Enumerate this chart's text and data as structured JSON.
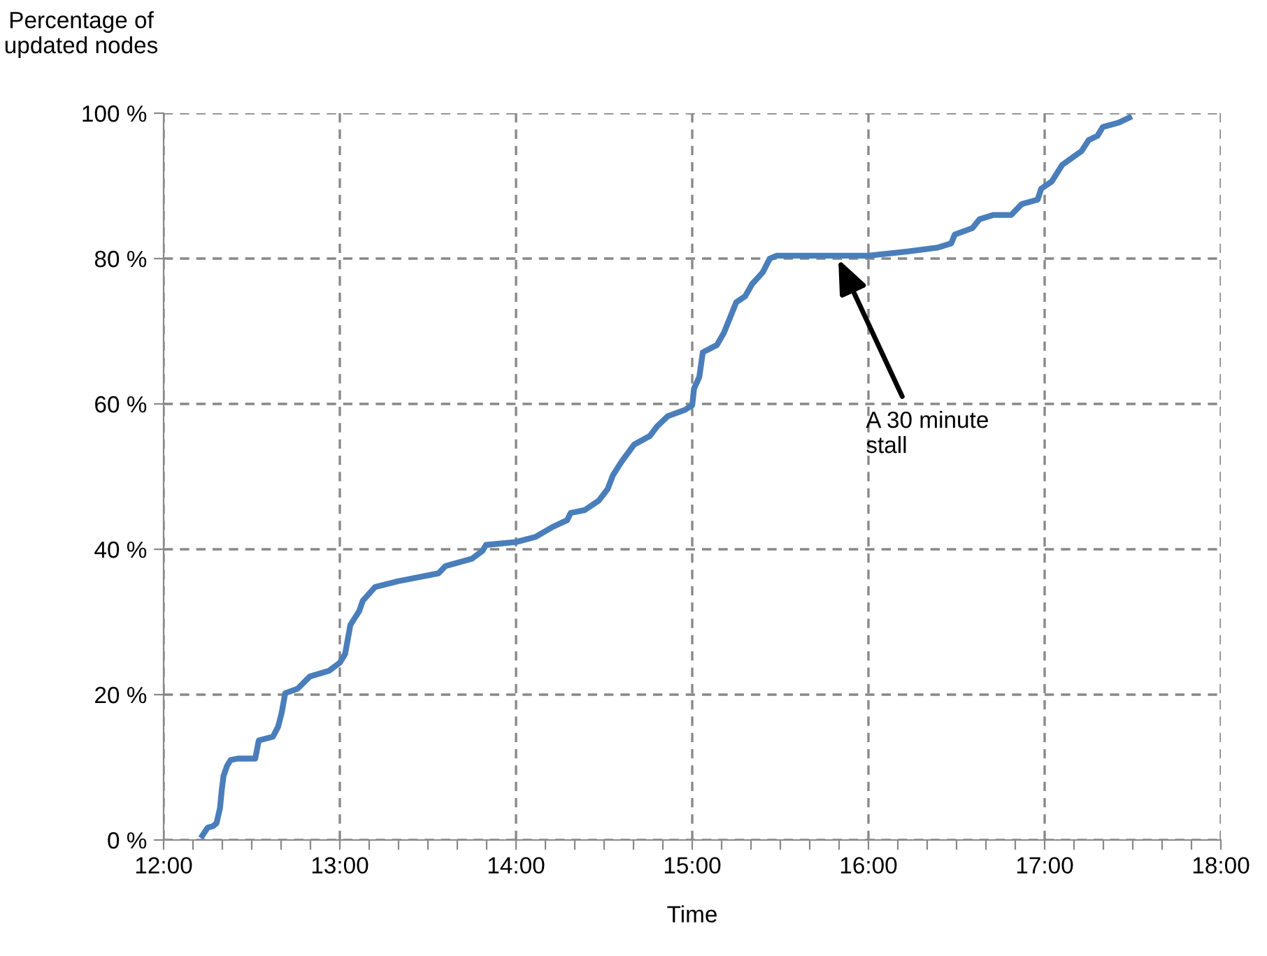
{
  "chart_data": {
    "type": "line",
    "xlabel": "Time",
    "ylabel": "Percentage of\nupdated nodes",
    "x": [
      12.22,
      12.25,
      12.28,
      12.3,
      12.32,
      12.33,
      12.34,
      12.36,
      12.38,
      12.42,
      12.52,
      12.54,
      12.62,
      12.65,
      12.67,
      12.69,
      12.76,
      12.83,
      12.94,
      13.0,
      13.03,
      13.06,
      13.11,
      13.13,
      13.2,
      13.33,
      13.56,
      13.6,
      13.75,
      13.81,
      13.83,
      14.0,
      14.11,
      14.21,
      14.29,
      14.31,
      14.39,
      14.47,
      14.52,
      14.55,
      14.6,
      14.67,
      14.76,
      14.8,
      14.86,
      14.96,
      15.0,
      15.01,
      15.04,
      15.06,
      15.14,
      15.18,
      15.25,
      15.3,
      15.34,
      15.4,
      15.44,
      15.48,
      15.83,
      16.0,
      16.23,
      16.39,
      16.47,
      16.49,
      16.59,
      16.63,
      16.71,
      16.81,
      16.87,
      16.96,
      16.98,
      17.04,
      17.1,
      17.21,
      17.25,
      17.3,
      17.33,
      17.42,
      17.48
    ],
    "series": [
      {
        "color": "#4a7ebb",
        "values": [
          0.6,
          1.7,
          1.9,
          2.3,
          4.4,
          6.9,
          8.8,
          10.2,
          11,
          11.2,
          11.2,
          13.7,
          14.2,
          15.6,
          17.5,
          20.2,
          20.8,
          22.5,
          23.3,
          24.4,
          25.6,
          29.6,
          31.5,
          32.9,
          34.8,
          35.6,
          36.7,
          37.7,
          38.7,
          39.8,
          40.6,
          41.0,
          41.7,
          43.1,
          44.0,
          45.0,
          45.4,
          46.7,
          48.3,
          50.2,
          52.1,
          54.4,
          55.6,
          56.9,
          58.3,
          59.2,
          59.8,
          62.1,
          63.7,
          67.1,
          68.1,
          69.8,
          74.0,
          74.8,
          76.5,
          78.1,
          80.0,
          80.4,
          80.4,
          80.4,
          81.0,
          81.5,
          82.1,
          83.3,
          84.2,
          85.4,
          86.0,
          86.0,
          87.5,
          88.1,
          89.6,
          90.6,
          92.9,
          94.8,
          96.3,
          96.9,
          98.1,
          98.7,
          99.4
        ]
      }
    ],
    "xlim": [
      12,
      18
    ],
    "xticks": [
      {
        "value": 12,
        "label": "12:00"
      },
      {
        "value": 12.1667,
        "label": null
      },
      {
        "value": 12.3333,
        "label": null
      },
      {
        "value": 12.5,
        "label": null
      },
      {
        "value": 12.6667,
        "label": null
      },
      {
        "value": 12.8333,
        "label": null
      },
      {
        "value": 13,
        "label": "13:00"
      },
      {
        "value": 13.1667,
        "label": null
      },
      {
        "value": 13.3333,
        "label": null
      },
      {
        "value": 13.5,
        "label": null
      },
      {
        "value": 13.6667,
        "label": null
      },
      {
        "value": 13.8333,
        "label": null
      },
      {
        "value": 14,
        "label": "14:00"
      },
      {
        "value": 14.1667,
        "label": null
      },
      {
        "value": 14.3333,
        "label": null
      },
      {
        "value": 14.5,
        "label": null
      },
      {
        "value": 14.6667,
        "label": null
      },
      {
        "value": 14.8333,
        "label": null
      },
      {
        "value": 15,
        "label": "15:00"
      },
      {
        "value": 15.1667,
        "label": null
      },
      {
        "value": 15.3333,
        "label": null
      },
      {
        "value": 15.5,
        "label": null
      },
      {
        "value": 15.6667,
        "label": null
      },
      {
        "value": 15.8333,
        "label": null
      },
      {
        "value": 16,
        "label": "16:00"
      },
      {
        "value": 16.1667,
        "label": null
      },
      {
        "value": 16.3333,
        "label": null
      },
      {
        "value": 16.5,
        "label": null
      },
      {
        "value": 16.6667,
        "label": null
      },
      {
        "value": 16.8333,
        "label": null
      },
      {
        "value": 17,
        "label": "17:00"
      },
      {
        "value": 17.1667,
        "label": null
      },
      {
        "value": 17.3333,
        "label": null
      },
      {
        "value": 17.5,
        "label": null
      },
      {
        "value": 17.6667,
        "label": null
      },
      {
        "value": 17.8333,
        "label": null
      },
      {
        "value": 18,
        "label": "18:00"
      }
    ],
    "ylim": [
      0,
      100
    ],
    "yticks": [
      {
        "value": 0,
        "label": "0 %"
      },
      {
        "value": 20,
        "label": "20 %"
      },
      {
        "value": 40,
        "label": "40 %"
      },
      {
        "value": 60,
        "label": "60 %"
      },
      {
        "value": 80,
        "label": "80 %"
      },
      {
        "value": 100,
        "label": "100 %"
      }
    ],
    "grid": true,
    "marker": "none",
    "line_style": "solid",
    "annotations": [
      {
        "text": "A 30 minute\nstall",
        "x": 15.82,
        "y": 80.4
      }
    ]
  }
}
